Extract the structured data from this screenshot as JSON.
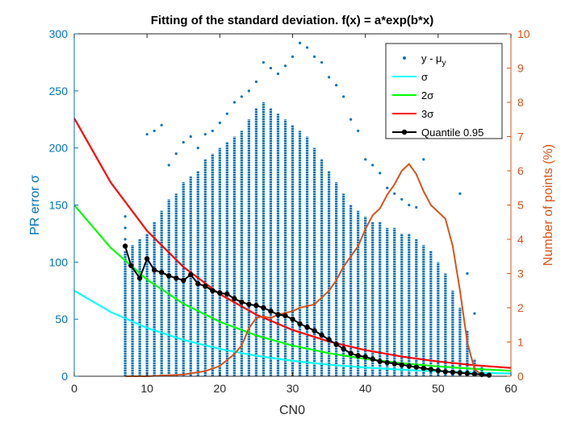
{
  "chart_data": {
    "type": "scatter",
    "title": "Fitting of the standard deviation. f(x) = a*exp(b*x)",
    "xlabel": "CN0",
    "ylabel_left": "PR error σ",
    "ylabel_right": "Number of points (%)",
    "xlim": [
      0,
      60
    ],
    "ylim_left": [
      0,
      300
    ],
    "ylim_right": [
      0,
      10
    ],
    "x_ticks": [
      0,
      10,
      20,
      30,
      40,
      50,
      60
    ],
    "y_ticks_left": [
      0,
      50,
      100,
      150,
      200,
      250,
      300
    ],
    "y_ticks_right": [
      0,
      1,
      2,
      3,
      4,
      5,
      6,
      7,
      8,
      9,
      10
    ],
    "grid": false,
    "legend_position": "top-right",
    "colors": {
      "scatter": "#0072BD",
      "sigma": "#00FFFF",
      "two_sigma": "#00FF00",
      "three_sigma": "#FF0000",
      "quantile": "#000000",
      "percent": "#D95319"
    },
    "series": [
      {
        "name": "y - μ",
        "name_subscript": "y",
        "type": "scatter-columns",
        "axis": "left",
        "columns": [
          {
            "x": 7,
            "ymin": 0,
            "ymax": 110
          },
          {
            "x": 8,
            "ymin": 0,
            "ymax": 115
          },
          {
            "x": 9,
            "ymin": 0,
            "ymax": 120
          },
          {
            "x": 10,
            "ymin": 0,
            "ymax": 125
          },
          {
            "x": 11,
            "ymin": 0,
            "ymax": 135
          },
          {
            "x": 12,
            "ymin": 0,
            "ymax": 145
          },
          {
            "x": 13,
            "ymin": 0,
            "ymax": 155
          },
          {
            "x": 14,
            "ymin": 0,
            "ymax": 160
          },
          {
            "x": 15,
            "ymin": 0,
            "ymax": 170
          },
          {
            "x": 16,
            "ymin": 0,
            "ymax": 175
          },
          {
            "x": 17,
            "ymin": 0,
            "ymax": 180
          },
          {
            "x": 18,
            "ymin": 0,
            "ymax": 190
          },
          {
            "x": 19,
            "ymin": 0,
            "ymax": 195
          },
          {
            "x": 20,
            "ymin": 0,
            "ymax": 200
          },
          {
            "x": 21,
            "ymin": 0,
            "ymax": 205
          },
          {
            "x": 22,
            "ymin": 0,
            "ymax": 210
          },
          {
            "x": 23,
            "ymin": 0,
            "ymax": 215
          },
          {
            "x": 24,
            "ymin": 0,
            "ymax": 225
          },
          {
            "x": 25,
            "ymin": 0,
            "ymax": 235
          },
          {
            "x": 26,
            "ymin": 0,
            "ymax": 240
          },
          {
            "x": 27,
            "ymin": 0,
            "ymax": 235
          },
          {
            "x": 28,
            "ymin": 0,
            "ymax": 230
          },
          {
            "x": 29,
            "ymin": 0,
            "ymax": 225
          },
          {
            "x": 30,
            "ymin": 0,
            "ymax": 220
          },
          {
            "x": 31,
            "ymin": 0,
            "ymax": 215
          },
          {
            "x": 32,
            "ymin": 0,
            "ymax": 210
          },
          {
            "x": 33,
            "ymin": 0,
            "ymax": 200
          },
          {
            "x": 34,
            "ymin": 0,
            "ymax": 190
          },
          {
            "x": 35,
            "ymin": 0,
            "ymax": 180
          },
          {
            "x": 36,
            "ymin": 0,
            "ymax": 170
          },
          {
            "x": 37,
            "ymin": 0,
            "ymax": 160
          },
          {
            "x": 38,
            "ymin": 0,
            "ymax": 150
          },
          {
            "x": 39,
            "ymin": 0,
            "ymax": 145
          },
          {
            "x": 40,
            "ymin": 0,
            "ymax": 140
          },
          {
            "x": 41,
            "ymin": 0,
            "ymax": 135
          },
          {
            "x": 42,
            "ymin": 0,
            "ymax": 135
          },
          {
            "x": 43,
            "ymin": 0,
            "ymax": 130
          },
          {
            "x": 44,
            "ymin": 0,
            "ymax": 130
          },
          {
            "x": 45,
            "ymin": 0,
            "ymax": 125
          },
          {
            "x": 46,
            "ymin": 0,
            "ymax": 125
          },
          {
            "x": 47,
            "ymin": 0,
            "ymax": 120
          },
          {
            "x": 48,
            "ymin": 0,
            "ymax": 115
          },
          {
            "x": 49,
            "ymin": 0,
            "ymax": 110
          },
          {
            "x": 50,
            "ymin": 0,
            "ymax": 100
          },
          {
            "x": 51,
            "ymin": 0,
            "ymax": 90
          },
          {
            "x": 52,
            "ymin": 0,
            "ymax": 75
          },
          {
            "x": 53,
            "ymin": 0,
            "ymax": 60
          },
          {
            "x": 54,
            "ymin": 0,
            "ymax": 40
          },
          {
            "x": 55,
            "ymin": 0,
            "ymax": 15
          },
          {
            "x": 56,
            "ymin": 0,
            "ymax": 8
          }
        ],
        "outliers": [
          [
            7,
            120
          ],
          [
            7,
            130
          ],
          [
            7,
            140
          ],
          [
            10,
            212
          ],
          [
            11,
            215
          ],
          [
            12,
            220
          ],
          [
            13,
            185
          ],
          [
            14,
            195
          ],
          [
            15,
            205
          ],
          [
            16,
            210
          ],
          [
            17,
            200
          ],
          [
            18,
            212
          ],
          [
            19,
            215
          ],
          [
            20,
            222
          ],
          [
            21,
            230
          ],
          [
            22,
            240
          ],
          [
            23,
            245
          ],
          [
            24,
            250
          ],
          [
            25,
            258
          ],
          [
            26,
            275
          ],
          [
            27,
            270
          ],
          [
            28,
            265
          ],
          [
            29,
            272
          ],
          [
            30,
            280
          ],
          [
            31,
            292
          ],
          [
            32,
            288
          ],
          [
            33,
            280
          ],
          [
            34,
            275
          ],
          [
            35,
            262
          ],
          [
            36,
            255
          ],
          [
            37,
            245
          ],
          [
            38,
            225
          ],
          [
            39,
            215
          ],
          [
            40,
            190
          ],
          [
            41,
            185
          ],
          [
            42,
            178
          ],
          [
            43,
            165
          ],
          [
            44,
            160
          ],
          [
            45,
            155
          ],
          [
            46,
            150
          ],
          [
            47,
            148
          ],
          [
            48,
            190
          ],
          [
            49,
            235
          ],
          [
            50,
            250
          ],
          [
            51,
            245
          ],
          [
            52,
            210
          ],
          [
            53,
            160
          ],
          [
            54,
            90
          ],
          [
            55,
            55
          ]
        ]
      },
      {
        "name": "σ",
        "type": "line",
        "axis": "left",
        "x": [
          0,
          5,
          10,
          15,
          20,
          25,
          30,
          35,
          40,
          45,
          50,
          55,
          60
        ],
        "y": [
          75,
          56.3,
          42.3,
          31.8,
          23.9,
          17.9,
          13.5,
          10.1,
          7.6,
          5.7,
          4.3,
          3.2,
          2.4
        ]
      },
      {
        "name": "2σ",
        "type": "line",
        "axis": "left",
        "x": [
          0,
          5,
          10,
          15,
          20,
          25,
          30,
          35,
          40,
          45,
          50,
          55,
          60
        ],
        "y": [
          150,
          112.6,
          84.6,
          63.5,
          47.7,
          35.8,
          26.9,
          20.2,
          15.2,
          11.4,
          8.6,
          6.4,
          4.8
        ]
      },
      {
        "name": "3σ",
        "type": "line",
        "axis": "left",
        "x": [
          0,
          5,
          10,
          15,
          20,
          25,
          30,
          35,
          40,
          45,
          50,
          55,
          60
        ],
        "y": [
          226,
          169.8,
          127.4,
          95.7,
          71.9,
          54.0,
          40.5,
          30.4,
          22.9,
          17.2,
          12.9,
          9.7,
          7.3
        ]
      },
      {
        "name": "Quantile 0.95",
        "type": "line-markers",
        "axis": "left",
        "x": [
          7,
          7.8,
          9,
          10,
          11,
          12,
          13,
          14,
          15,
          16,
          17,
          18,
          19,
          20,
          21,
          22,
          23,
          24,
          25,
          26,
          27,
          28,
          29,
          30,
          31,
          32,
          33,
          34,
          35,
          36,
          37,
          38,
          39,
          40,
          41,
          42,
          43,
          44,
          45,
          46,
          47,
          48,
          49,
          50,
          51,
          52,
          53,
          54,
          55,
          56,
          57
        ],
        "y": [
          114,
          97,
          86,
          103,
          93,
          91,
          88,
          86,
          84,
          89,
          81,
          79,
          75,
          73,
          72,
          68,
          65,
          63,
          62,
          60,
          57,
          54,
          53,
          50,
          46,
          43,
          40,
          36,
          32,
          28,
          24,
          20,
          18,
          17,
          15,
          13,
          12,
          11,
          10,
          9,
          8,
          7,
          6,
          5,
          4,
          3.5,
          3,
          2.5,
          2,
          1.5,
          1
        ]
      },
      {
        "name": "",
        "type": "line",
        "axis": "right",
        "x": [
          7,
          10,
          15,
          18,
          20,
          22,
          23,
          24,
          25,
          26,
          27,
          28,
          29,
          30,
          31,
          32,
          33,
          34,
          35,
          36,
          37,
          38,
          39,
          40,
          41,
          42,
          43,
          44,
          45,
          46,
          47,
          48,
          49,
          50,
          51,
          52,
          53,
          54,
          55,
          56,
          57
        ],
        "y": [
          0,
          0,
          0.05,
          0.15,
          0.3,
          0.65,
          0.9,
          1.4,
          1.7,
          1.75,
          1.7,
          1.8,
          1.85,
          1.9,
          2.0,
          2.05,
          2.1,
          2.3,
          2.5,
          2.8,
          3.2,
          3.5,
          3.8,
          4.3,
          4.7,
          4.9,
          5.3,
          5.6,
          6.0,
          6.2,
          5.9,
          5.4,
          5.0,
          4.8,
          4.6,
          3.8,
          2.5,
          1.0,
          0.2,
          0.05,
          0
        ]
      }
    ]
  }
}
